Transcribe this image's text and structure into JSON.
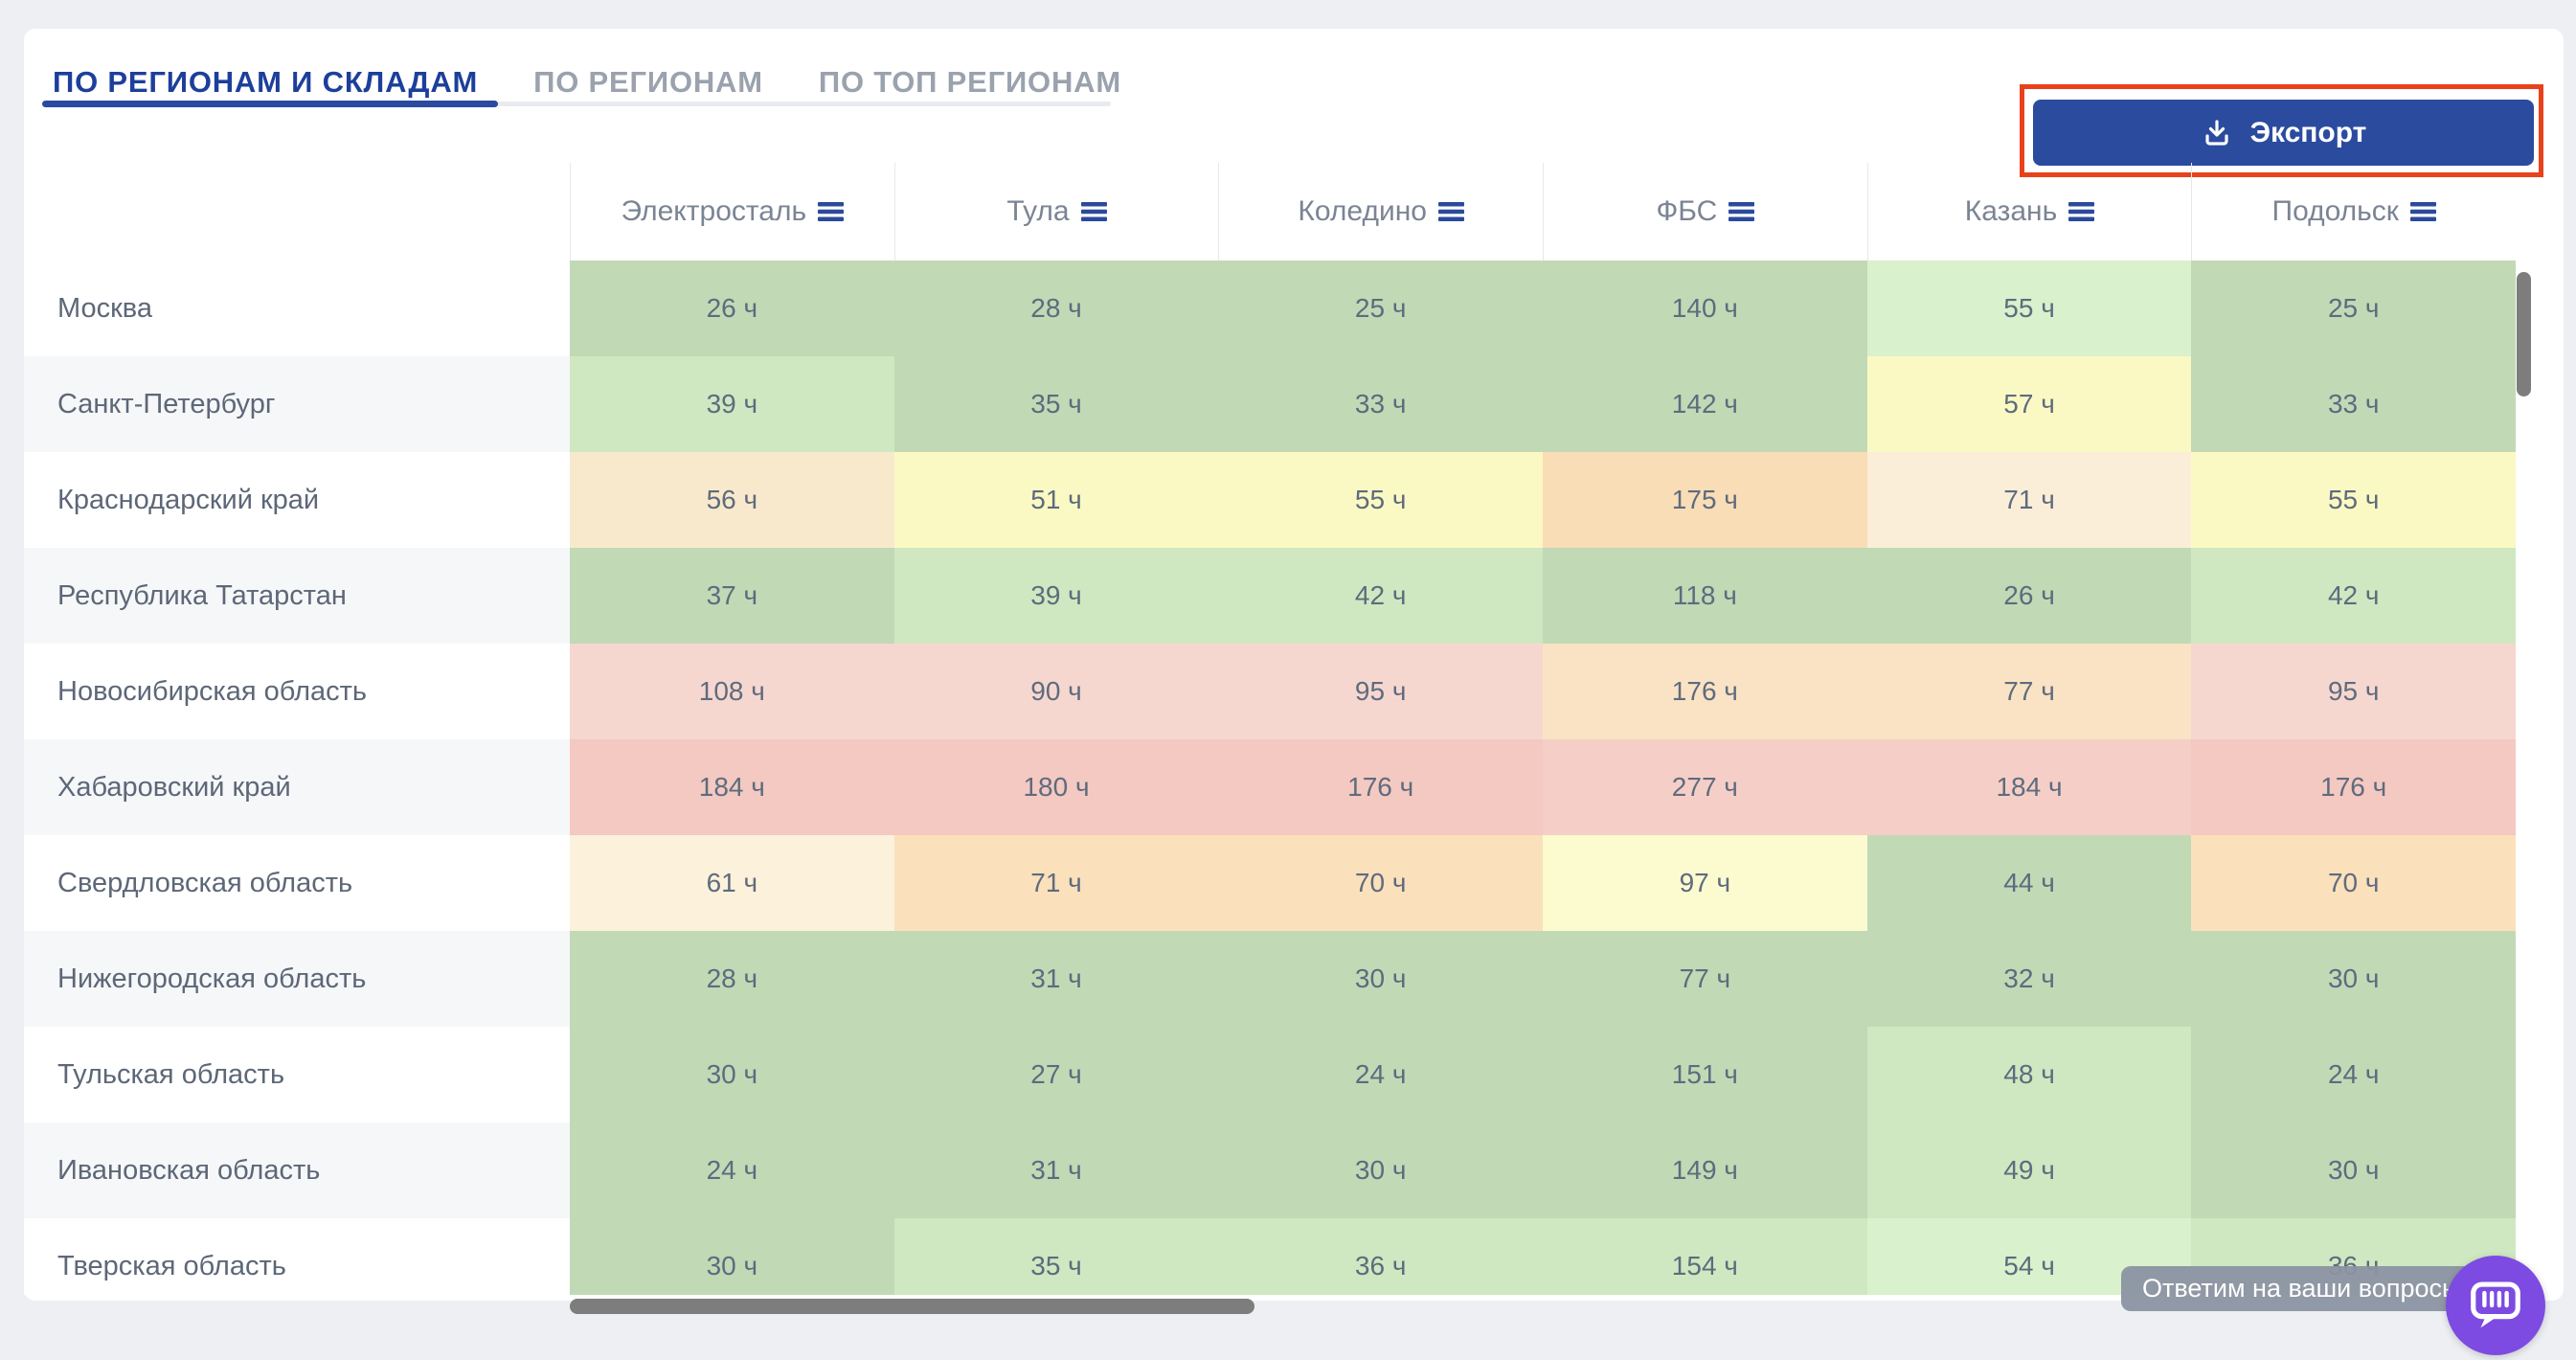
{
  "tabs": [
    {
      "label": "ПО РЕГИОНАМ И СКЛАДАМ",
      "active": true
    },
    {
      "label": "ПО РЕГИОНАМ",
      "active": false
    },
    {
      "label": "ПО ТОП РЕГИОНАМ",
      "active": false
    }
  ],
  "export": {
    "label": "Экспорт"
  },
  "table": {
    "unit": "ч",
    "columns": [
      "Электросталь",
      "Тула",
      "Коледино",
      "ФБС",
      "Казань",
      "Подольск"
    ],
    "rows": [
      {
        "region": "Москва",
        "cells": [
          {
            "value": 26,
            "color": "#c2d9b6"
          },
          {
            "value": 28,
            "color": "#c2d9b6"
          },
          {
            "value": 25,
            "color": "#c2d9b6"
          },
          {
            "value": 140,
            "color": "#c2d9b6"
          },
          {
            "value": 55,
            "color": "#d9f1cc"
          },
          {
            "value": 25,
            "color": "#c2d9b6"
          }
        ]
      },
      {
        "region": "Санкт-Петербург",
        "cells": [
          {
            "value": 39,
            "color": "#cfe8c1"
          },
          {
            "value": 35,
            "color": "#c2d9b6"
          },
          {
            "value": 33,
            "color": "#c2d9b6"
          },
          {
            "value": 142,
            "color": "#c2d9b6"
          },
          {
            "value": 57,
            "color": "#fbf9c3"
          },
          {
            "value": 33,
            "color": "#c2d9b6"
          }
        ]
      },
      {
        "region": "Краснодарский край",
        "cells": [
          {
            "value": 56,
            "color": "#f8e9cd"
          },
          {
            "value": 51,
            "color": "#fbf9c3"
          },
          {
            "value": 55,
            "color": "#fbf9c3"
          },
          {
            "value": 175,
            "color": "#f9ddb7"
          },
          {
            "value": 71,
            "color": "#fbeed8"
          },
          {
            "value": 55,
            "color": "#fbf9c3"
          }
        ]
      },
      {
        "region": "Республика Татарстан",
        "cells": [
          {
            "value": 37,
            "color": "#c2d9b6"
          },
          {
            "value": 39,
            "color": "#cfe8c1"
          },
          {
            "value": 42,
            "color": "#cfe8c1"
          },
          {
            "value": 118,
            "color": "#c2d9b6"
          },
          {
            "value": 26,
            "color": "#c2d9b6"
          },
          {
            "value": 42,
            "color": "#cfe8c1"
          }
        ]
      },
      {
        "region": "Новосибирская область",
        "cells": [
          {
            "value": 108,
            "color": "#f6d7d0"
          },
          {
            "value": 90,
            "color": "#f6d7d0"
          },
          {
            "value": 95,
            "color": "#f6d7d0"
          },
          {
            "value": 176,
            "color": "#f9e3c4"
          },
          {
            "value": 77,
            "color": "#f9e3c4"
          },
          {
            "value": 95,
            "color": "#f6d7d0"
          }
        ]
      },
      {
        "region": "Хабаровский край",
        "cells": [
          {
            "value": 184,
            "color": "#f3c9c1"
          },
          {
            "value": 180,
            "color": "#f3c9c1"
          },
          {
            "value": 176,
            "color": "#f3c9c1"
          },
          {
            "value": 277,
            "color": "#f5cfc7"
          },
          {
            "value": 184,
            "color": "#f5cfc7"
          },
          {
            "value": 176,
            "color": "#f3c9c1"
          }
        ]
      },
      {
        "region": "Свердловская область",
        "cells": [
          {
            "value": 61,
            "color": "#fcf1da"
          },
          {
            "value": 71,
            "color": "#fae0bb"
          },
          {
            "value": 70,
            "color": "#fae0bb"
          },
          {
            "value": 97,
            "color": "#fcfacf"
          },
          {
            "value": 44,
            "color": "#c2d9b6"
          },
          {
            "value": 70,
            "color": "#fae0bb"
          }
        ]
      },
      {
        "region": "Нижегородская область",
        "cells": [
          {
            "value": 28,
            "color": "#c2d9b6"
          },
          {
            "value": 31,
            "color": "#c2d9b6"
          },
          {
            "value": 30,
            "color": "#c2d9b6"
          },
          {
            "value": 77,
            "color": "#c2d9b6"
          },
          {
            "value": 32,
            "color": "#c2d9b6"
          },
          {
            "value": 30,
            "color": "#c2d9b6"
          }
        ]
      },
      {
        "region": "Тульская область",
        "cells": [
          {
            "value": 30,
            "color": "#c2d9b6"
          },
          {
            "value": 27,
            "color": "#c2d9b6"
          },
          {
            "value": 24,
            "color": "#c2d9b6"
          },
          {
            "value": 151,
            "color": "#c2d9b6"
          },
          {
            "value": 48,
            "color": "#cfe8c1"
          },
          {
            "value": 24,
            "color": "#c2d9b6"
          }
        ]
      },
      {
        "region": "Ивановская область",
        "cells": [
          {
            "value": 24,
            "color": "#c2d9b6"
          },
          {
            "value": 31,
            "color": "#c2d9b6"
          },
          {
            "value": 30,
            "color": "#c2d9b6"
          },
          {
            "value": 149,
            "color": "#c2d9b6"
          },
          {
            "value": 49,
            "color": "#cfe8c1"
          },
          {
            "value": 30,
            "color": "#c2d9b6"
          }
        ]
      },
      {
        "region": "Тверская область",
        "cells": [
          {
            "value": 30,
            "color": "#c2d9b6"
          },
          {
            "value": 35,
            "color": "#cfe8c1"
          },
          {
            "value": 36,
            "color": "#cfe8c1"
          },
          {
            "value": 154,
            "color": "#cfe8c1"
          },
          {
            "value": 54,
            "color": "#d9f1cc"
          },
          {
            "value": 36,
            "color": "#cfe8c1"
          }
        ]
      }
    ]
  },
  "chat": {
    "tooltip": "Ответим на ваши вопросы"
  },
  "colors": {
    "accent_blue": "#2b4b9e",
    "active_tab_blue": "#1d3f9b",
    "annotation_red": "#e8421c",
    "chat_purple": "#7d4be1",
    "scrollbar_gray": "#7d7d7d"
  }
}
